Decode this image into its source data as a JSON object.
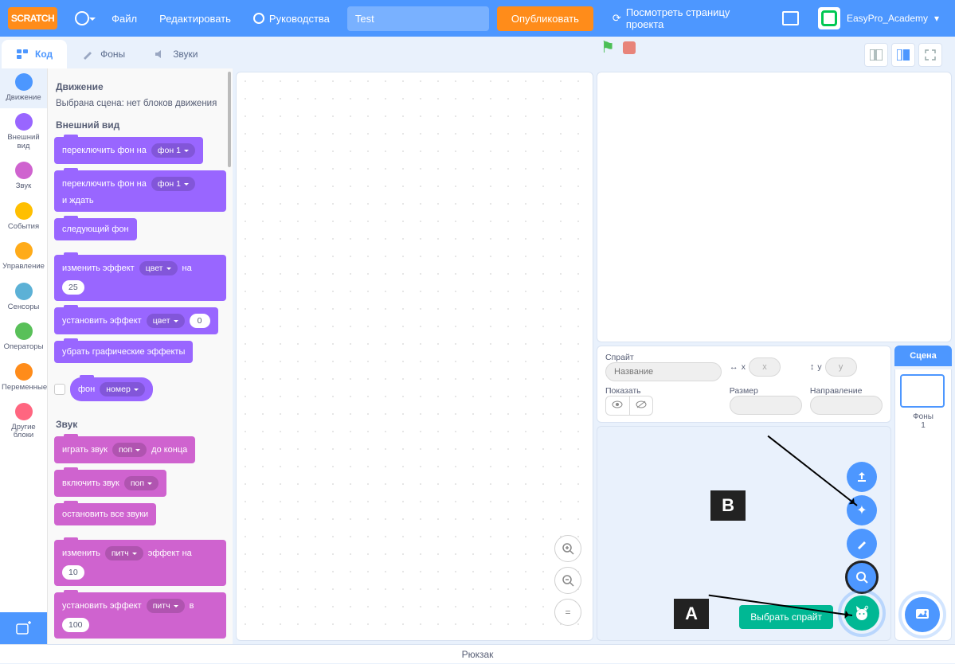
{
  "colors": {
    "primary": "#4d97ff",
    "accent_orange": "#ff8c1a",
    "looks": "#9966ff",
    "sound": "#cf63cf",
    "green_fab": "#00b894"
  },
  "menubar": {
    "logo_text": "SCRATCH",
    "file": "Файл",
    "edit": "Редактировать",
    "tutorials": "Руководства",
    "project_title_value": "Test",
    "publish": "Опубликовать",
    "view_page": "Посмотреть страницу проекта",
    "username": "EasyPro_Academy"
  },
  "tabs": {
    "code": "Код",
    "costumes": "Фоны",
    "sounds": "Звуки"
  },
  "categories": [
    {
      "label": "Движение",
      "color": "#4c97ff"
    },
    {
      "label": "Внешний вид",
      "color": "#9966ff"
    },
    {
      "label": "Звук",
      "color": "#cf63cf"
    },
    {
      "label": "События",
      "color": "#ffbf00"
    },
    {
      "label": "Управление",
      "color": "#ffab19"
    },
    {
      "label": "Сенсоры",
      "color": "#5cb1d6"
    },
    {
      "label": "Операторы",
      "color": "#59c059"
    },
    {
      "label": "Переменные",
      "color": "#ff8c1a"
    },
    {
      "label": "Другие блоки",
      "color": "#ff6680"
    }
  ],
  "palette": {
    "motion_header": "Движение",
    "motion_stage_msg": "Выбрана сцена: нет блоков движения",
    "looks_header": "Внешний вид",
    "switch_bg_to": "переключить фон на",
    "bg1": "фон 1",
    "switch_bg_wait": "и ждать",
    "next_bg": "следующий фон",
    "change_effect": "изменить эффект",
    "effect_color": "цвет",
    "by_label": "на",
    "val25": "25",
    "set_effect": "установить эффект",
    "val0": "0",
    "clear_effects": "убрать графические эффекты",
    "bg_reporter": "фон",
    "bg_number": "номер",
    "sound_header": "Звук",
    "play_sound": "играть звук",
    "sound_pop": "поп",
    "until_done": "до конца",
    "start_sound": "включить звук",
    "stop_all_sounds": "остановить все звуки",
    "change_pitch": "изменить",
    "pitch_label": "питч",
    "effect_by": "эффект на",
    "val10": "10",
    "set_pitch": "установить эффект",
    "in_label": "в",
    "val100": "100"
  },
  "sprite_info": {
    "sprite_hdr": "Спрайт",
    "name_placeholder": "Название",
    "x_label": "x",
    "x_val": "x",
    "y_label": "y",
    "y_val": "y",
    "show_label": "Показать",
    "size_label": "Размер",
    "dir_label": "Направление"
  },
  "scene": {
    "header": "Сцена",
    "backdrops_label": "Фоны",
    "backdrops_count": "1"
  },
  "tooltip_choose_sprite": "Выбрать спрайт",
  "annotations": {
    "a": "A",
    "b": "B"
  },
  "backpack": "Рюкзак"
}
